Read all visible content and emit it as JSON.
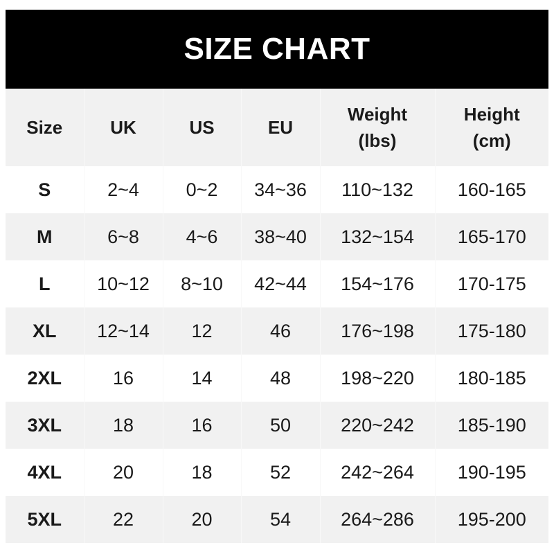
{
  "title": "SIZE CHART",
  "columns": [
    {
      "line1": "Size",
      "line2": ""
    },
    {
      "line1": "UK",
      "line2": ""
    },
    {
      "line1": "US",
      "line2": ""
    },
    {
      "line1": "EU",
      "line2": ""
    },
    {
      "line1": "Weight",
      "line2": "(lbs)"
    },
    {
      "line1": "Height",
      "line2": "(cm)"
    }
  ],
  "rows": [
    [
      "S",
      "2~4",
      "0~2",
      "34~36",
      "110~132",
      "160-165"
    ],
    [
      "M",
      "6~8",
      "4~6",
      "38~40",
      "132~154",
      "165-170"
    ],
    [
      "L",
      "10~12",
      "8~10",
      "42~44",
      "154~176",
      "170-175"
    ],
    [
      "XL",
      "12~14",
      "12",
      "46",
      "176~198",
      "175-180"
    ],
    [
      "2XL",
      "16",
      "14",
      "48",
      "198~220",
      "180-185"
    ],
    [
      "3XL",
      "18",
      "16",
      "50",
      "220~242",
      "185-190"
    ],
    [
      "4XL",
      "20",
      "18",
      "52",
      "242~264",
      "190-195"
    ],
    [
      "5XL",
      "22",
      "20",
      "54",
      "264~286",
      "195-200"
    ]
  ],
  "colors": {
    "header_bg": "#000000",
    "stripe": "#f1f1f1",
    "text": "#1a1a1a"
  }
}
